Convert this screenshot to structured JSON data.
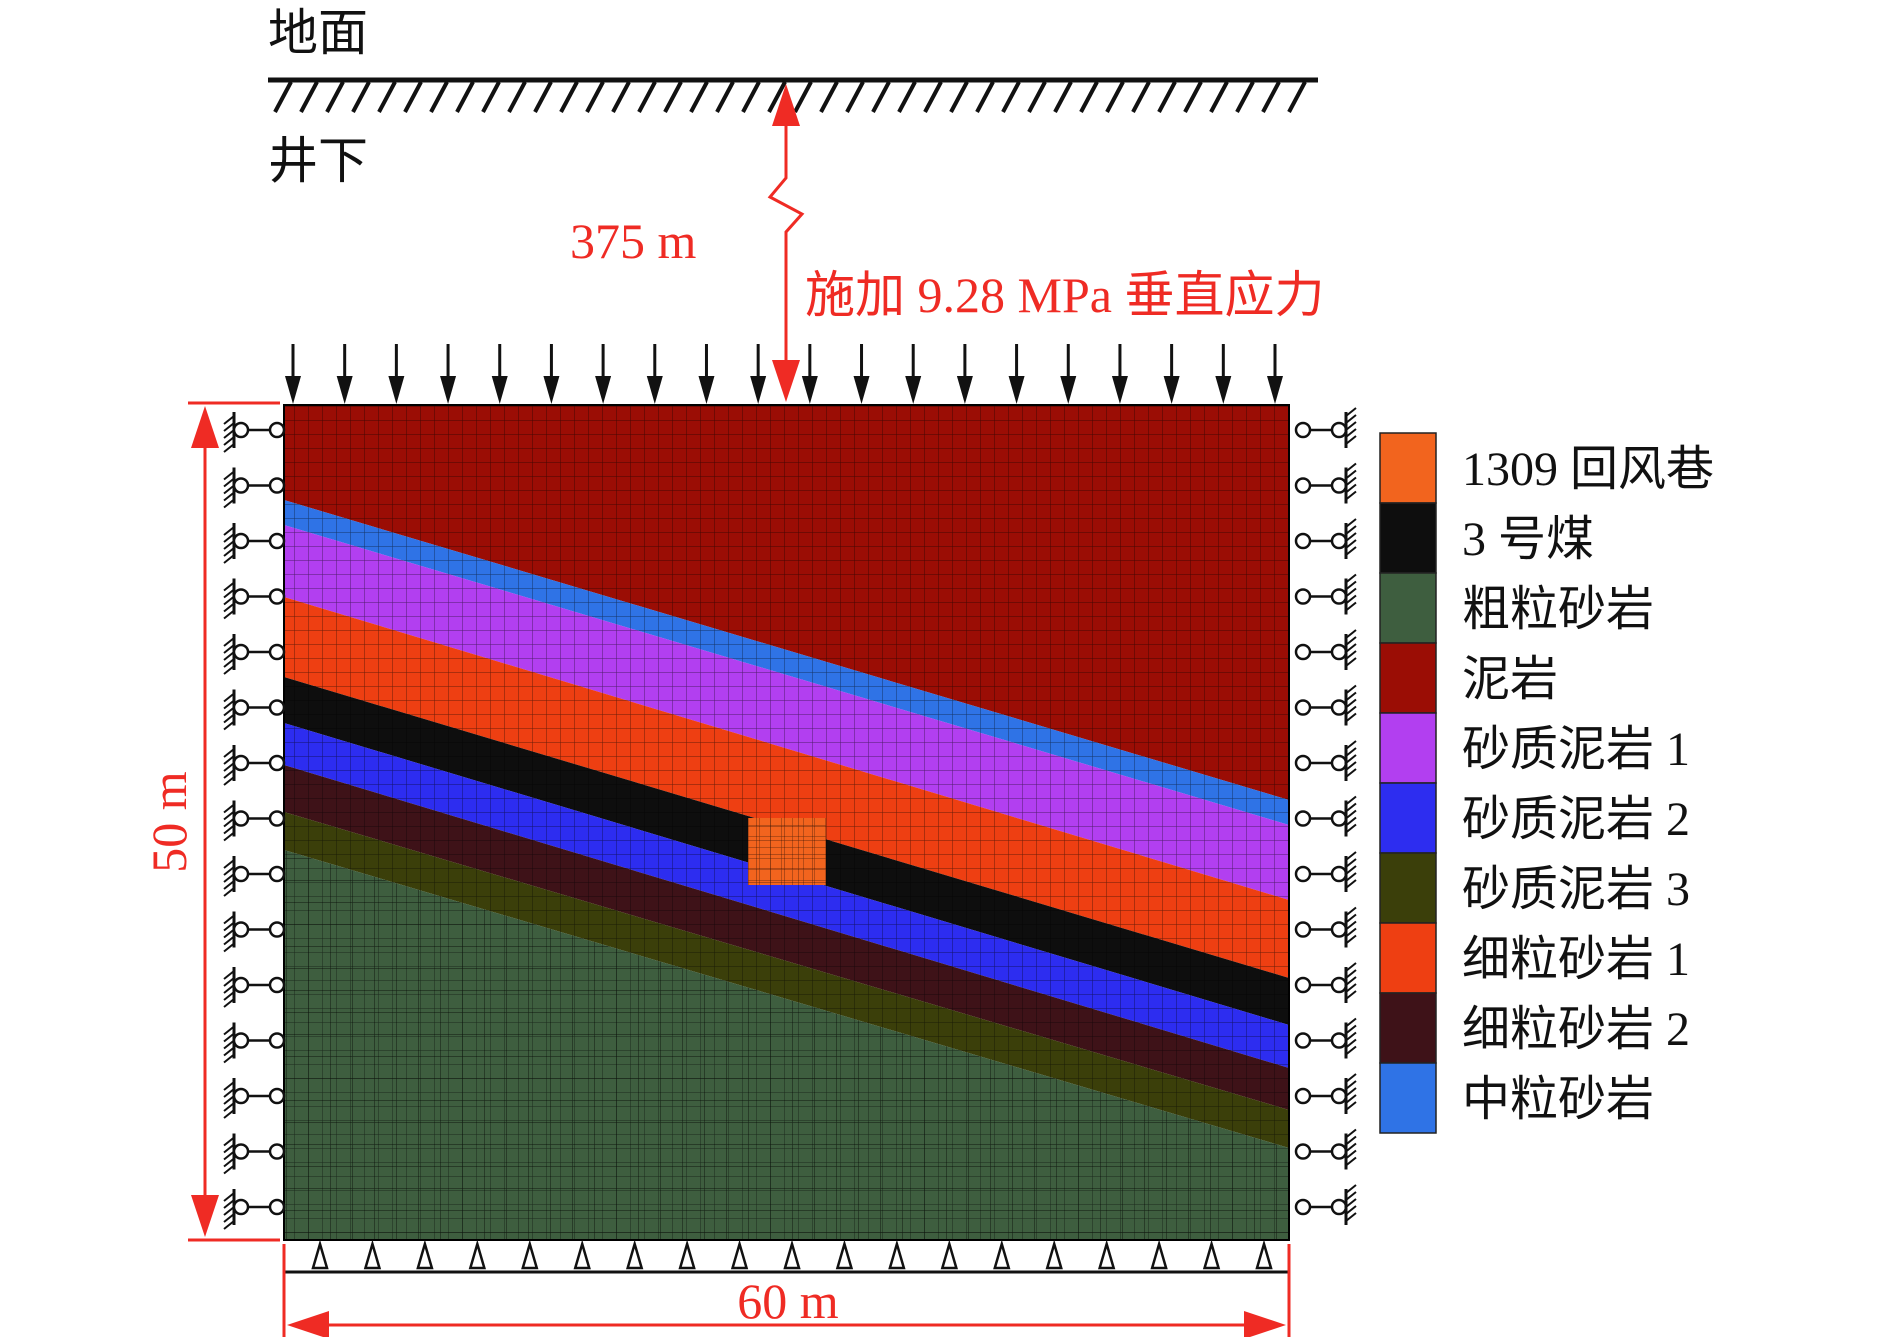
{
  "labels": {
    "ground": "地面",
    "underground": "井下",
    "depth": "375 m",
    "stress": "施加 9.28 MPa 垂直应力",
    "height": "50 m",
    "width": "60 m"
  },
  "legend": [
    {
      "label": "1309 回风巷",
      "color": "#f2641e"
    },
    {
      "label": "3 号煤",
      "color": "#0e0e0e"
    },
    {
      "label": "粗粒砂岩",
      "color": "#3e5e3f"
    },
    {
      "label": "泥岩",
      "color": "#9b0d05"
    },
    {
      "label": "砂质泥岩 1",
      "color": "#b23ff0"
    },
    {
      "label": "砂质泥岩 2",
      "color": "#2d2df0"
    },
    {
      "label": "砂质泥岩 3",
      "color": "#3b3f0a"
    },
    {
      "label": "细粒砂岩 1",
      "color": "#ee3f12"
    },
    {
      "label": "细粒砂岩 2",
      "color": "#3e1218"
    },
    {
      "label": "中粒砂岩",
      "color": "#2f73e6"
    }
  ],
  "colors": {
    "accent_red": "#ef2b24",
    "mesh_line": "#000000"
  }
}
